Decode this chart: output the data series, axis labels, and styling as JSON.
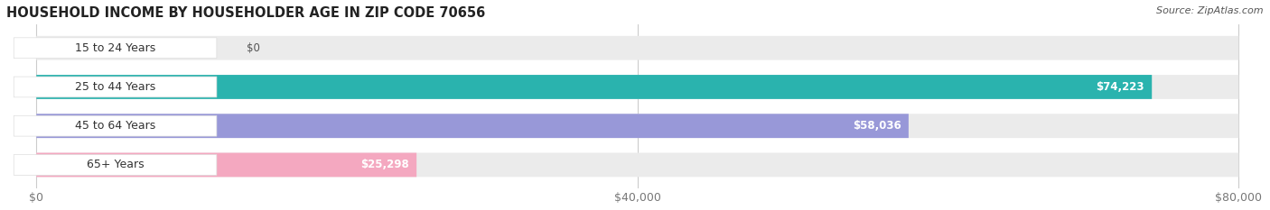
{
  "title": "HOUSEHOLD INCOME BY HOUSEHOLDER AGE IN ZIP CODE 70656",
  "source": "Source: ZipAtlas.com",
  "categories": [
    "15 to 24 Years",
    "25 to 44 Years",
    "45 to 64 Years",
    "65+ Years"
  ],
  "values": [
    0,
    74223,
    58036,
    25298
  ],
  "bar_colors": [
    "#c8a8d0",
    "#2ab3ae",
    "#9898d8",
    "#f4a8c0"
  ],
  "bar_bg_color": "#ebebeb",
  "xlim": [
    0,
    80000
  ],
  "xticks": [
    0,
    40000,
    80000
  ],
  "xtick_labels": [
    "$0",
    "$40,000",
    "$80,000"
  ],
  "title_fontsize": 10.5,
  "source_fontsize": 8,
  "label_fontsize": 9,
  "value_fontsize": 8.5,
  "bar_height": 0.62,
  "figsize": [
    14.06,
    2.33
  ],
  "dpi": 100,
  "bg_color": "#ffffff",
  "label_pill_color": "#ffffff",
  "label_text_color": "#333333",
  "value_text_color_white": "#ffffff",
  "value_text_color_dark": "#555555",
  "grid_color": "#cccccc",
  "xtick_color": "#777777"
}
